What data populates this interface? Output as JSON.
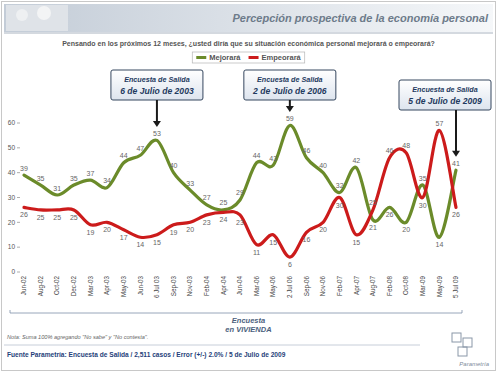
{
  "chart_data": {
    "type": "line",
    "title": "Percepción prospectiva de la economía personal",
    "subtitle": "Pensando en los próximos 12 meses, ¿usted diría que su situación económica personal mejorará o empeorará?",
    "categories": [
      "Jun-02",
      "Aug-02",
      "Oct-02",
      "Dec-02",
      "Mar-03",
      "Apr-03",
      "May-03",
      "Jun-03",
      "6 Jul 03",
      "Sep-03",
      "Nov-03",
      "Feb-04",
      "Apr-04",
      "Jun-04",
      "Mar-06",
      "May-06",
      "2 Jul 06",
      "Sep-06",
      "Nov-06",
      "Feb-07",
      "Apr-07",
      "Aug-07",
      "Feb-08",
      "Oct-08",
      "Mar-09",
      "May-09",
      "5 Jul 09"
    ],
    "series": [
      {
        "name": "Mejorará",
        "color": "#6b8b2a",
        "values": [
          39,
          35,
          31,
          35,
          37,
          34,
          44,
          47,
          53,
          40,
          33,
          27,
          25,
          29,
          44,
          43,
          59,
          46,
          40,
          32,
          42,
          21,
          26,
          20,
          35,
          14,
          41
        ]
      },
      {
        "name": "Empeorará",
        "color": "#cc1b1b",
        "values": [
          26,
          25,
          25,
          25,
          19,
          20,
          17,
          14,
          15,
          19,
          20,
          23,
          24,
          23,
          11,
          15,
          6,
          16,
          20,
          30,
          15,
          25,
          46,
          48,
          30,
          57,
          26
        ]
      }
    ],
    "ylim": [
      0,
      60
    ],
    "yticks": [
      0,
      10,
      20,
      30,
      40,
      50,
      60
    ],
    "grid": false,
    "legend": "top",
    "data_labels": true,
    "line_style": "solid",
    "marker": "none",
    "annotations": [
      {
        "lines": [
          "Encuesta de Salida",
          "6 de Julio de 2003"
        ],
        "at": "6 Jul 03"
      },
      {
        "lines": [
          "Encuesta de Salida",
          "2 de Julio de 2006"
        ],
        "at": "2 Jul 06"
      },
      {
        "lines": [
          "Encuesta de Salida",
          "5 de Julio de 2009"
        ],
        "at": "5 Jul 09"
      }
    ],
    "x_group_label": [
      "Encuesta",
      "en VIVIENDA"
    ],
    "note": "Nota: Suma 100% agregando \"No sabe\" y \"No contesta\".",
    "source": "Fuente Parametría: Encuesta de Salida / 2,511 casos / Error (+/-) 2.0% / 5 de Julio de 2009",
    "logo": "Parametría"
  }
}
